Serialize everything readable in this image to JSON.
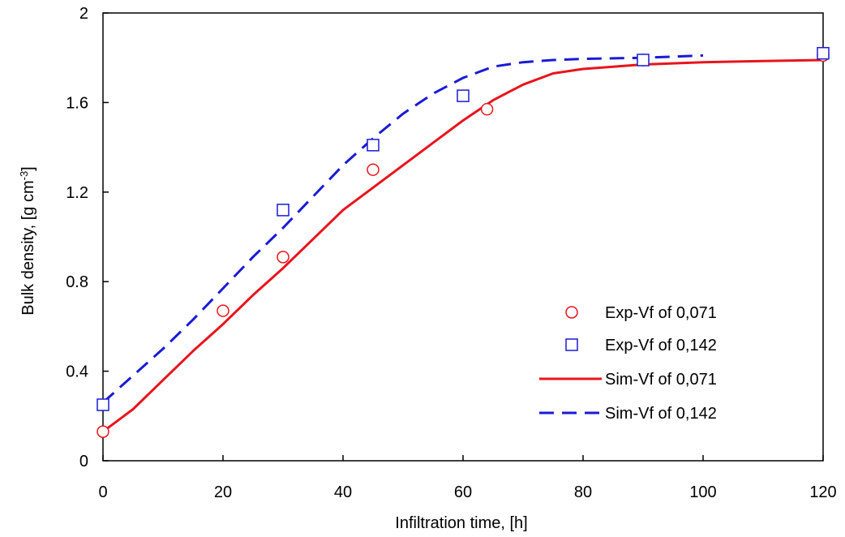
{
  "chart_data": {
    "type": "scatter",
    "xlabel": "Infiltration time, [h]",
    "ylabel": "Bulk density, [g cm",
    "ylabel_sup": "-3",
    "ylabel_tail": "]",
    "xlim": [
      0,
      120
    ],
    "ylim": [
      0,
      2
    ],
    "xticks": [
      0,
      20,
      40,
      60,
      80,
      100,
      120
    ],
    "yticks": [
      0,
      0.4,
      0.8,
      1.2,
      1.6,
      2
    ],
    "xtick_labels": [
      "0",
      "20",
      "40",
      "60",
      "80",
      "100",
      "120"
    ],
    "ytick_labels": [
      "0",
      "0.4",
      "0.8",
      "1.2",
      "1.6",
      "2"
    ],
    "grid": false,
    "legend_position": "bottom-right",
    "series": [
      {
        "name": "Exp-Vf of 0,071",
        "kind": "marker",
        "marker": "circle",
        "color": "#e8141c",
        "x": [
          0,
          20,
          30,
          45,
          64,
          90,
          120
        ],
        "y": [
          0.13,
          0.67,
          0.91,
          1.3,
          1.57,
          1.79,
          1.81
        ]
      },
      {
        "name": "Exp-Vf of 0,142",
        "kind": "marker",
        "marker": "square",
        "color": "#1a1ad6",
        "x": [
          0,
          30,
          45,
          60,
          90,
          120
        ],
        "y": [
          0.25,
          1.12,
          1.41,
          1.63,
          1.79,
          1.82
        ]
      },
      {
        "name": "Sim-Vf of 0,071",
        "kind": "line",
        "dash": "solid",
        "color": "#e8141c",
        "x": [
          0,
          5,
          10,
          15,
          20,
          25,
          30,
          35,
          40,
          45,
          50,
          55,
          60,
          65,
          70,
          75,
          80,
          90,
          100,
          110,
          120
        ],
        "y": [
          0.13,
          0.23,
          0.36,
          0.49,
          0.61,
          0.74,
          0.86,
          0.99,
          1.12,
          1.22,
          1.32,
          1.42,
          1.52,
          1.61,
          1.68,
          1.73,
          1.75,
          1.77,
          1.78,
          1.785,
          1.79
        ]
      },
      {
        "name": "Sim-Vf of 0,142",
        "kind": "line",
        "dash": "dashed",
        "color": "#1a1ad6",
        "x": [
          0,
          5,
          10,
          15,
          20,
          25,
          30,
          35,
          40,
          45,
          50,
          55,
          60,
          65,
          70,
          75,
          80,
          90,
          100
        ],
        "y": [
          0.26,
          0.38,
          0.5,
          0.63,
          0.77,
          0.91,
          1.04,
          1.18,
          1.32,
          1.44,
          1.55,
          1.64,
          1.71,
          1.76,
          1.78,
          1.79,
          1.795,
          1.8,
          1.81
        ]
      }
    ]
  },
  "colors": {
    "background": "#ffffff",
    "axis": "#000000"
  }
}
